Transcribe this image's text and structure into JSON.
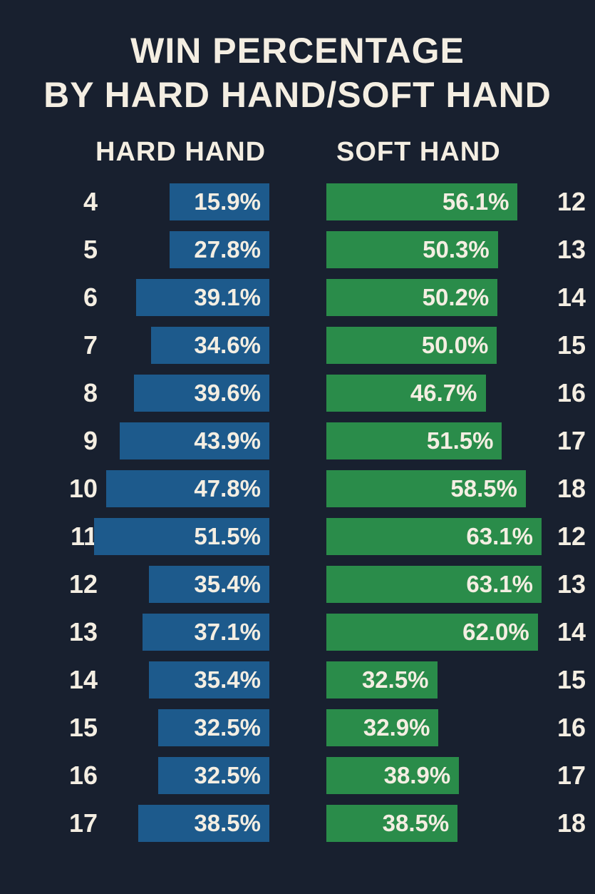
{
  "title_line1": "WIN PERCENTAGE",
  "title_line2": "BY HARD HAND/SOFT HAND",
  "headers": {
    "hard": "HARD HAND",
    "soft": "SOFT HAND"
  },
  "colors": {
    "background": "#18202f",
    "hard": "#1d5a8c",
    "soft": "#2a8c4a",
    "text": "#f4eee2"
  },
  "chart_data": {
    "type": "bar",
    "orientation": "horizontal",
    "title": "WIN PERCENTAGE BY HARD HAND/SOFT HAND",
    "unit": "%",
    "xlim": [
      0,
      63.1
    ],
    "series": [
      {
        "name": "HARD HAND",
        "categories": [
          "4",
          "5",
          "6",
          "7",
          "8",
          "9",
          "10",
          "11",
          "12",
          "13",
          "14",
          "15",
          "16",
          "17"
        ],
        "values": [
          15.9,
          27.8,
          39.1,
          34.6,
          39.6,
          43.9,
          47.8,
          51.5,
          35.4,
          37.1,
          35.4,
          32.5,
          32.5,
          38.5
        ],
        "labels": [
          "15.9%",
          "27.8%",
          "39.1%",
          "34.6%",
          "39.6%",
          "43.9%",
          "47.8%",
          "51.5%",
          "35.4%",
          "37.1%",
          "35.4%",
          "32.5%",
          "32.5%",
          "38.5%"
        ]
      },
      {
        "name": "SOFT HAND",
        "categories": [
          "12",
          "13",
          "14",
          "15",
          "16",
          "17",
          "18",
          "12",
          "13",
          "14",
          "15",
          "16",
          "17",
          "18"
        ],
        "values": [
          56.1,
          50.3,
          50.2,
          50.0,
          46.7,
          51.5,
          58.5,
          63.1,
          63.1,
          62.0,
          32.5,
          32.9,
          38.9,
          38.5
        ],
        "labels": [
          "56.1%",
          "50.3%",
          "50.2%",
          "50.0%",
          "46.7%",
          "51.5%",
          "58.5%",
          "63.1%",
          "63.1%",
          "62.0%",
          "32.5%",
          "32.9%",
          "38.9%",
          "38.5%"
        ]
      }
    ]
  }
}
